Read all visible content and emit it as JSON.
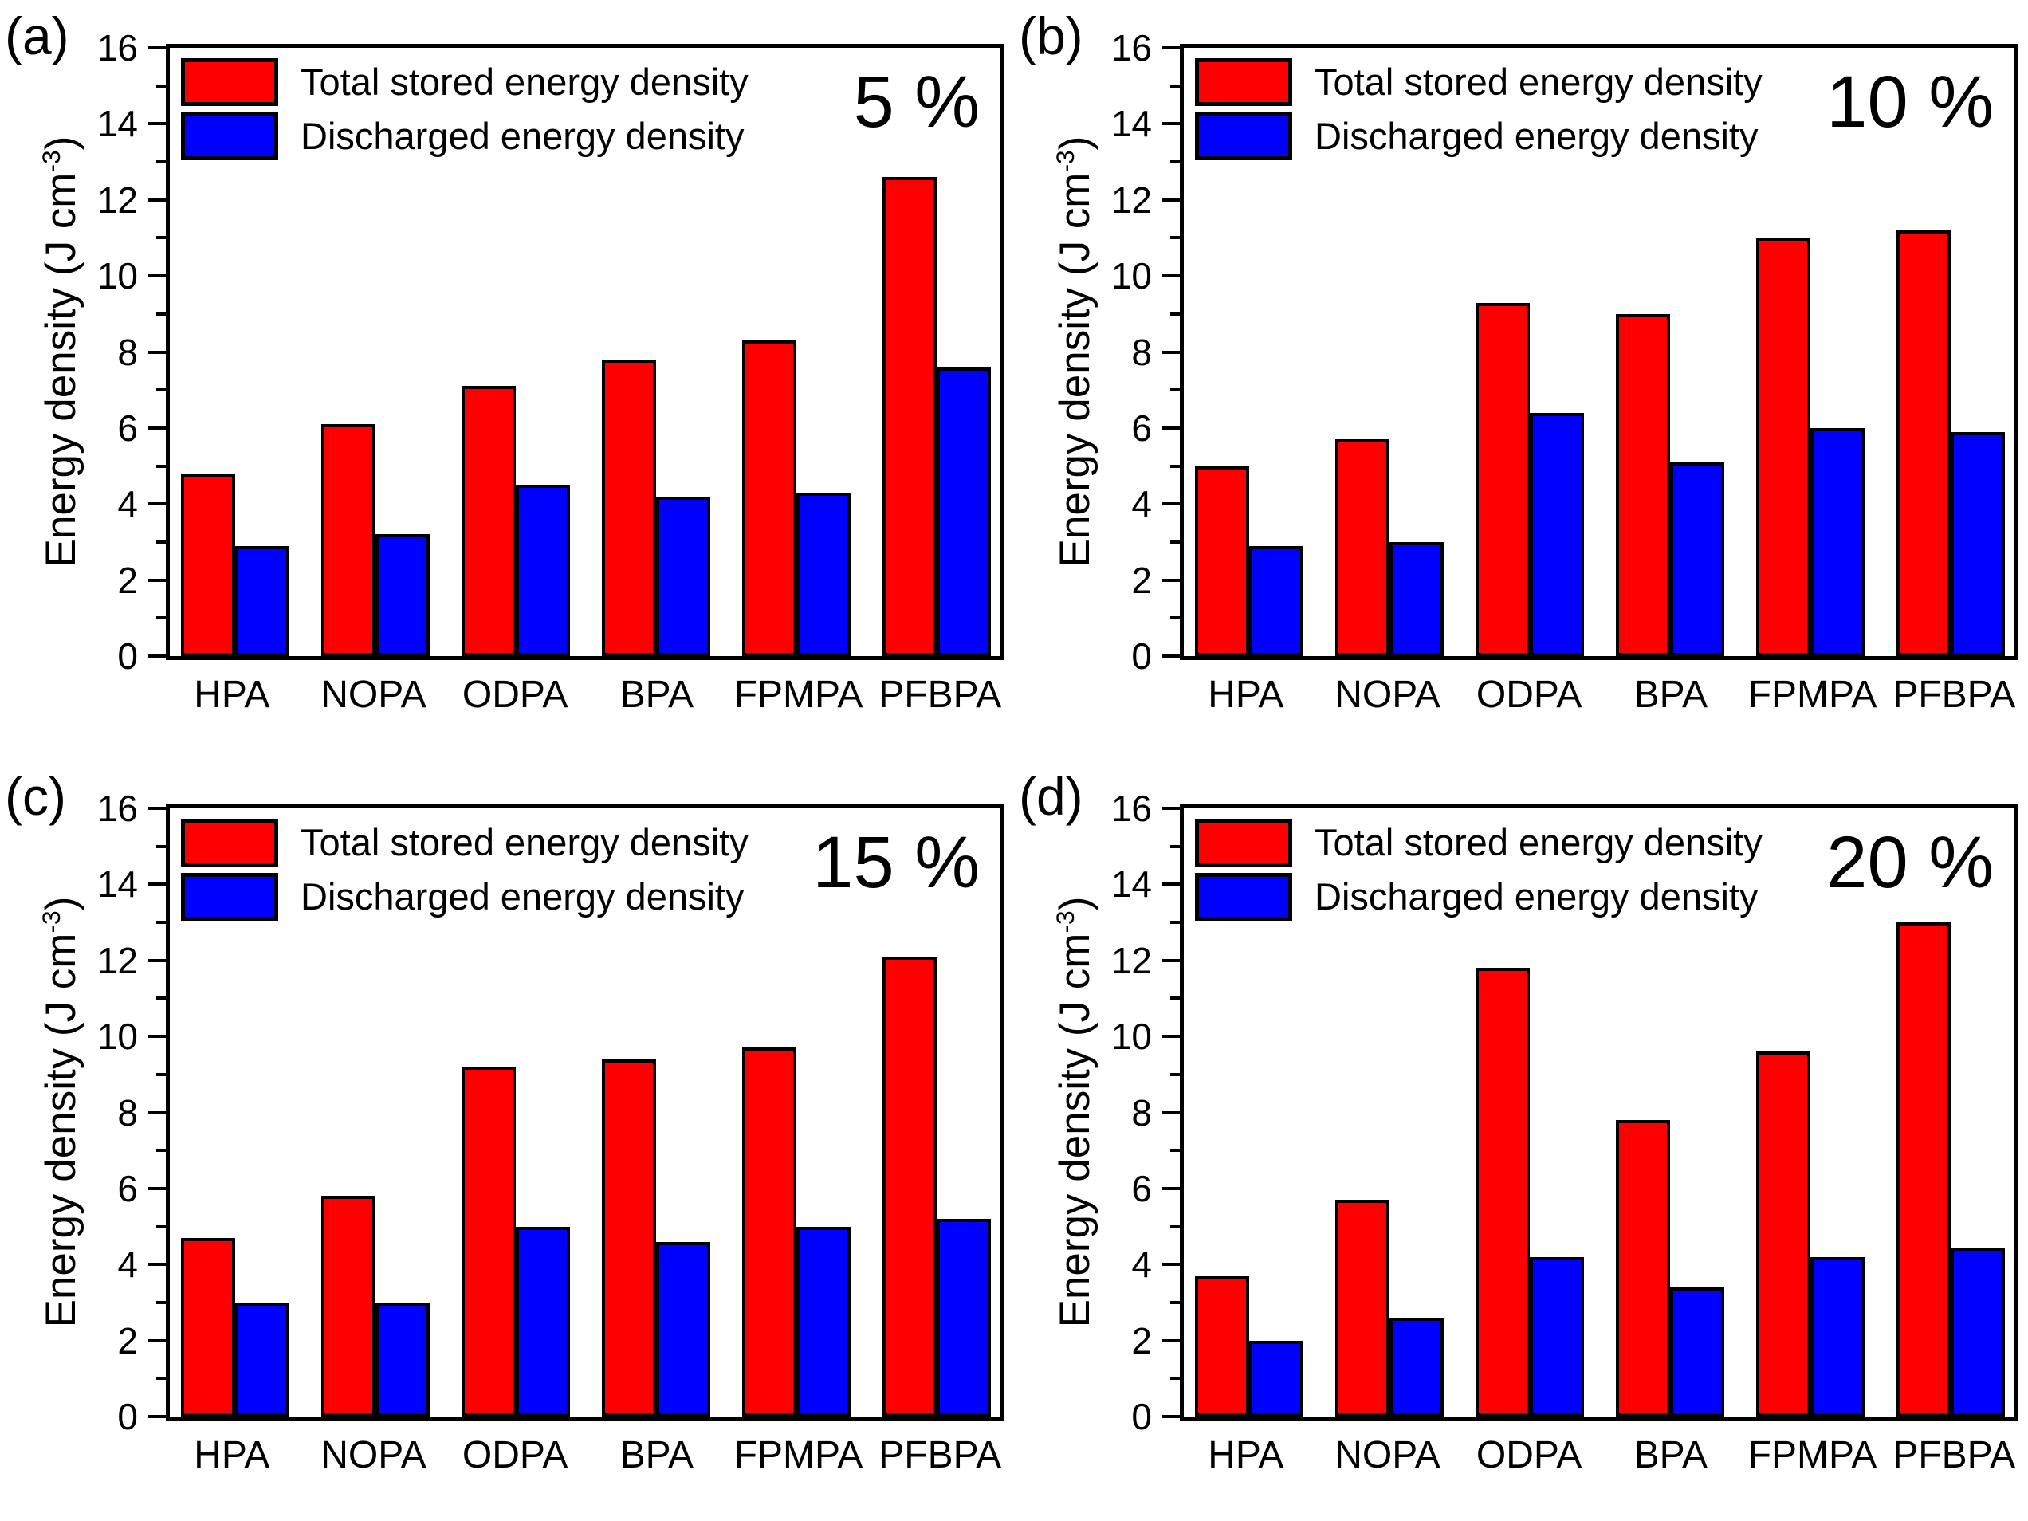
{
  "figure": {
    "axes": {
      "ylabel_main": "Energy density (J cm",
      "ylabel_sup": "-3",
      "ylabel_close": ")",
      "ylabel_full": "Energy density (J cm⁻³)"
    },
    "series_colors": {
      "total": "#FF0000",
      "discharged": "#0000FF"
    }
  },
  "chart_data": [
    {
      "type": "bar",
      "panel": "(a)",
      "annotation": "5 %",
      "categories": [
        "HPA",
        "NOPA",
        "ODPA",
        "BPA",
        "FPMPA",
        "PFBPA"
      ],
      "series": [
        {
          "name": "Total stored energy density",
          "color": "#FF0000",
          "values": [
            4.8,
            6.1,
            7.1,
            7.8,
            8.3,
            12.6
          ]
        },
        {
          "name": "Discharged energy density",
          "color": "#0000FF",
          "values": [
            2.9,
            3.2,
            4.5,
            4.2,
            4.3,
            7.6
          ]
        }
      ],
      "xlabel": "",
      "ylabel": "Energy density (J cm⁻³)",
      "ylim": [
        0,
        16
      ],
      "ytick_step": 2,
      "legend_position": "top-left",
      "grid": false
    },
    {
      "type": "bar",
      "panel": "(b)",
      "annotation": "10 %",
      "categories": [
        "HPA",
        "NOPA",
        "ODPA",
        "BPA",
        "FPMPA",
        "PFBPA"
      ],
      "series": [
        {
          "name": "Total stored energy density",
          "color": "#FF0000",
          "values": [
            5.0,
            5.7,
            9.3,
            9.0,
            11.0,
            11.2
          ]
        },
        {
          "name": "Discharged energy density",
          "color": "#0000FF",
          "values": [
            2.9,
            3.0,
            6.4,
            5.1,
            6.0,
            5.9
          ]
        }
      ],
      "xlabel": "",
      "ylabel": "Energy density (J cm⁻³)",
      "ylim": [
        0,
        16
      ],
      "ytick_step": 2,
      "legend_position": "top-left",
      "grid": false
    },
    {
      "type": "bar",
      "panel": "(c)",
      "annotation": "15 %",
      "categories": [
        "HPA",
        "NOPA",
        "ODPA",
        "BPA",
        "FPMPA",
        "PFBPA"
      ],
      "series": [
        {
          "name": "Total stored energy density",
          "color": "#FF0000",
          "values": [
            4.7,
            5.8,
            9.2,
            9.4,
            9.7,
            12.1
          ]
        },
        {
          "name": "Discharged energy density",
          "color": "#0000FF",
          "values": [
            3.0,
            3.0,
            5.0,
            4.6,
            5.0,
            5.2
          ]
        }
      ],
      "xlabel": "",
      "ylabel": "Energy density (J cm⁻³)",
      "ylim": [
        0,
        16
      ],
      "ytick_step": 2,
      "legend_position": "top-left",
      "grid": false
    },
    {
      "type": "bar",
      "panel": "(d)",
      "annotation": "20 %",
      "categories": [
        "HPA",
        "NOPA",
        "ODPA",
        "BPA",
        "FPMPA",
        "PFBPA"
      ],
      "series": [
        {
          "name": "Total stored energy density",
          "color": "#FF0000",
          "values": [
            3.7,
            5.7,
            11.8,
            7.8,
            9.6,
            13.0
          ]
        },
        {
          "name": "Discharged energy density",
          "color": "#0000FF",
          "values": [
            2.0,
            2.6,
            4.2,
            3.4,
            4.2,
            4.45
          ]
        }
      ],
      "xlabel": "",
      "ylabel": "Energy density (J cm⁻³)",
      "ylim": [
        0,
        16
      ],
      "ytick_step": 2,
      "legend_position": "top-left",
      "grid": false
    }
  ]
}
